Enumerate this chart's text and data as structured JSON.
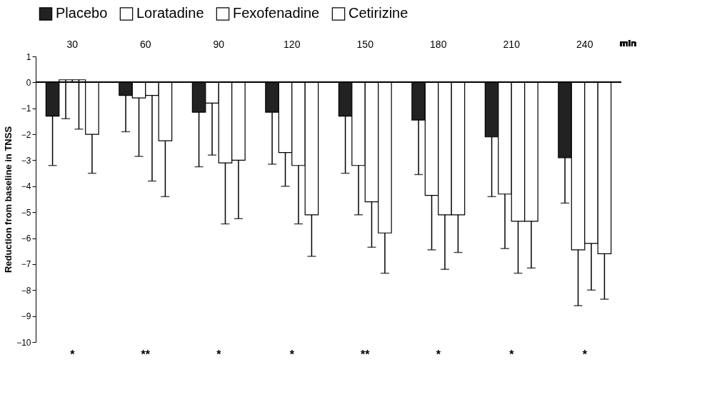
{
  "chart_data": {
    "type": "bar",
    "ylabel": "Reduction from baseline in TNSS",
    "xlabel": "min",
    "categories": [
      "30",
      "60",
      "90",
      "120",
      "150",
      "180",
      "210",
      "240"
    ],
    "series": [
      {
        "name": "Placebo",
        "color": "#222222",
        "values": [
          -1.3,
          -0.5,
          -1.15,
          -1.15,
          -1.3,
          -1.45,
          -2.1,
          -2.9
        ],
        "errors": [
          [
            -3.2,
            -1.3
          ],
          [
            -1.9,
            -0.5
          ],
          [
            -3.25,
            -1.15
          ],
          [
            -3.15,
            -1.15
          ],
          [
            -3.5,
            -1.3
          ],
          [
            -3.55,
            -1.45
          ],
          [
            -4.4,
            -2.1
          ],
          [
            -4.65,
            -2.9
          ]
        ]
      },
      {
        "name": "Loratadine",
        "color": "#ffffff",
        "values": [
          0.1,
          -0.6,
          -0.8,
          -2.7,
          -3.2,
          -4.35,
          -4.3,
          -6.45
        ],
        "errors": [
          [
            -1.4,
            0.1
          ],
          [
            -2.85,
            -0.6
          ],
          [
            -2.8,
            -0.8
          ],
          [
            -4.0,
            -2.7
          ],
          [
            -5.1,
            -3.2
          ],
          [
            -6.45,
            -4.35
          ],
          [
            -6.4,
            -4.3
          ],
          [
            -8.6,
            -6.45
          ]
        ]
      },
      {
        "name": "Fexofenadine",
        "color": "#ffffff",
        "values": [
          0.1,
          -0.5,
          -3.1,
          -3.2,
          -4.6,
          -5.1,
          -5.35,
          -6.2
        ],
        "errors": [
          [
            -1.8,
            0.1
          ],
          [
            -3.8,
            -0.5
          ],
          [
            -5.45,
            -3.1
          ],
          [
            -5.45,
            -3.2
          ],
          [
            -6.35,
            -4.6
          ],
          [
            -7.2,
            -5.1
          ],
          [
            -7.35,
            -5.35
          ],
          [
            -8.0,
            -6.2
          ]
        ]
      },
      {
        "name": "Cetirizine",
        "color": "#ffffff",
        "values": [
          -2.0,
          -2.25,
          -3.0,
          -5.1,
          -5.8,
          -5.1,
          -5.35,
          -6.6
        ],
        "errors": [
          [
            -3.5,
            -2.0
          ],
          [
            -4.4,
            -2.25
          ],
          [
            -5.25,
            -3.0
          ],
          [
            -6.7,
            -5.1
          ],
          [
            -7.35,
            -5.8
          ],
          [
            -6.55,
            -5.1
          ],
          [
            -7.15,
            -5.35
          ],
          [
            -8.35,
            -6.6
          ]
        ]
      }
    ],
    "ylim": [
      -10,
      1
    ],
    "yticks": [
      -10,
      -9,
      -8,
      -7,
      -6,
      -5,
      -4,
      -3,
      -2,
      -1,
      0,
      1
    ],
    "grid": false,
    "legend": "top",
    "ref_lines": [
      {
        "axis": "y",
        "value": 0,
        "color": "#000000"
      }
    ],
    "annotations": [
      "*",
      "**",
      "*",
      "*",
      "**",
      "*",
      "*",
      "*"
    ]
  }
}
